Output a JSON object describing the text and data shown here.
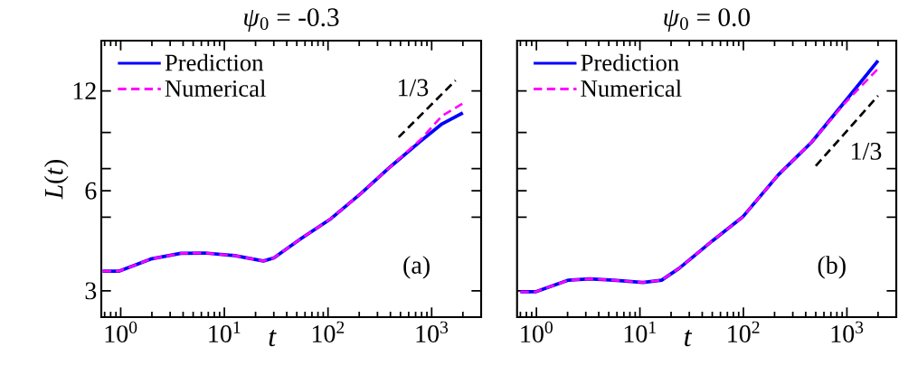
{
  "chart_data": [
    {
      "type": "line",
      "title": "*ψ*$_{0}$ = -0.3",
      "xlabel": "*t*",
      "ylabel": "*L*(*t*)",
      "log": "xy",
      "legend": "top left",
      "xlim": [
        0.65,
        3000
      ],
      "ylim": [
        2.5,
        17
      ],
      "xticks": [
        {
          "value": 1,
          "label": "10$^{0}$"
        },
        {
          "value": 10,
          "label": "10$^{1}$"
        },
        {
          "value": 100,
          "label": "10$^{2}$"
        },
        {
          "value": 1000,
          "label": "10$^{3}$"
        }
      ],
      "yticks": [
        3,
        {
          "value": 5,
          "label": null
        },
        6,
        {
          "value": 7,
          "label": null
        },
        {
          "value": 9,
          "label": null
        },
        12
      ],
      "series": [
        {
          "name": "Prediction",
          "color": "#0000ff",
          "line_style": "solid",
          "x": [
            0.67,
            0.97,
            1.95,
            3.8,
            6.5,
            12.6,
            23.8,
            30,
            55,
            107,
            209,
            407,
            794,
            1260,
            2000
          ],
          "values": [
            3.44,
            3.44,
            3.74,
            3.89,
            3.9,
            3.83,
            3.69,
            3.77,
            4.31,
            4.95,
            5.9,
            7.13,
            8.5,
            9.55,
            10.3
          ]
        },
        {
          "name": "Numerical",
          "color": "#ff00ff",
          "line_style": "dashed",
          "x": [
            0.67,
            0.97,
            1.95,
            3.8,
            6.5,
            12.6,
            23.8,
            30,
            55,
            107,
            209,
            407,
            794,
            1260,
            2000
          ],
          "values": [
            3.44,
            3.44,
            3.74,
            3.89,
            3.9,
            3.83,
            3.69,
            3.77,
            4.31,
            4.95,
            5.9,
            7.13,
            8.6,
            10.1,
            11.0
          ]
        },
        {
          "color": "#000000",
          "line_style": "dashed",
          "x": [
            480,
            1700
          ],
          "values": [
            8.7,
            12.9
          ]
        }
      ],
      "annotations": [
        "1/3",
        "(a)"
      ]
    },
    {
      "type": "line",
      "title": "*ψ*$_{0}$ = 0.0",
      "xlabel": "*t*",
      "log": "xy",
      "legend": "top left",
      "tick_labels": "x",
      "xlim": [
        0.65,
        3000
      ],
      "ylim": [
        2.5,
        17
      ],
      "xticks": [
        {
          "value": 1,
          "label": "10$^{0}$"
        },
        {
          "value": 10,
          "label": "10$^{1}$"
        },
        {
          "value": 100,
          "label": "10$^{2}$"
        },
        {
          "value": 1000,
          "label": "10$^{3}$"
        }
      ],
      "yticks": [
        3,
        {
          "value": 5,
          "label": null
        },
        6,
        {
          "value": 7,
          "label": null
        },
        {
          "value": 9,
          "label": null
        },
        12
      ],
      "series": [
        {
          "name": "Prediction",
          "color": "#0000ff",
          "line_style": "solid",
          "x": [
            0.7,
            0.98,
            2.04,
            3.26,
            5.6,
            10.7,
            16.2,
            24,
            50,
            98,
            218,
            455,
            948,
            2000
          ],
          "values": [
            2.98,
            2.98,
            3.23,
            3.26,
            3.23,
            3.18,
            3.23,
            3.51,
            4.24,
            5.0,
            6.71,
            8.4,
            11.1,
            14.8
          ]
        },
        {
          "name": "Numerical",
          "color": "#ff00ff",
          "line_style": "dashed",
          "x": [
            0.7,
            0.98,
            2.04,
            3.26,
            5.6,
            10.7,
            16.2,
            24,
            50,
            98,
            218,
            455,
            948,
            2000
          ],
          "values": [
            2.98,
            2.98,
            3.23,
            3.26,
            3.23,
            3.18,
            3.23,
            3.51,
            4.24,
            5.0,
            6.71,
            8.4,
            11.0,
            14.0
          ]
        },
        {
          "color": "#000000",
          "line_style": "dashed",
          "x": [
            500,
            2000
          ],
          "values": [
            7.13,
            11.6
          ]
        }
      ],
      "annotations": [
        "1/3",
        "(b)"
      ]
    }
  ]
}
